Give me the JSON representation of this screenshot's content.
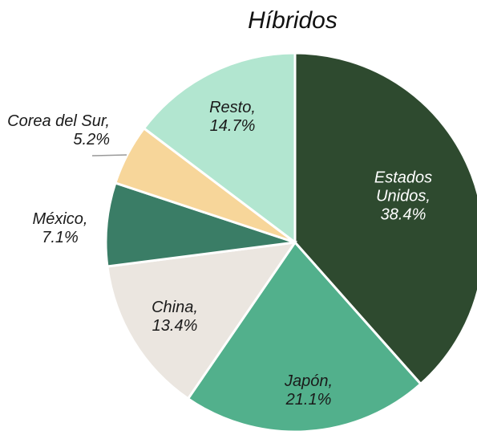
{
  "chart_data": {
    "type": "pie",
    "title": "Híbridos",
    "categories": [
      "Estados Unidos,",
      "Japón,",
      "China,",
      "México,",
      "Corea del Sur,",
      "Resto,"
    ],
    "values": [
      38.4,
      21.1,
      13.4,
      7.1,
      5.2,
      14.7
    ],
    "value_labels": [
      "38.4%",
      "21.1%",
      "13.4%",
      "7.1%",
      "5.2%",
      "14.7%"
    ],
    "colors": [
      "#2e4a2f",
      "#52b08c",
      "#ebe6e0",
      "#3a7d66",
      "#f7d69a",
      "#b2e6d0"
    ],
    "label_colors": [
      "#ffffff",
      "#1a1a1a",
      "#1a1a1a",
      "#1a1a1a",
      "#1a1a1a",
      "#1a1a1a"
    ]
  }
}
